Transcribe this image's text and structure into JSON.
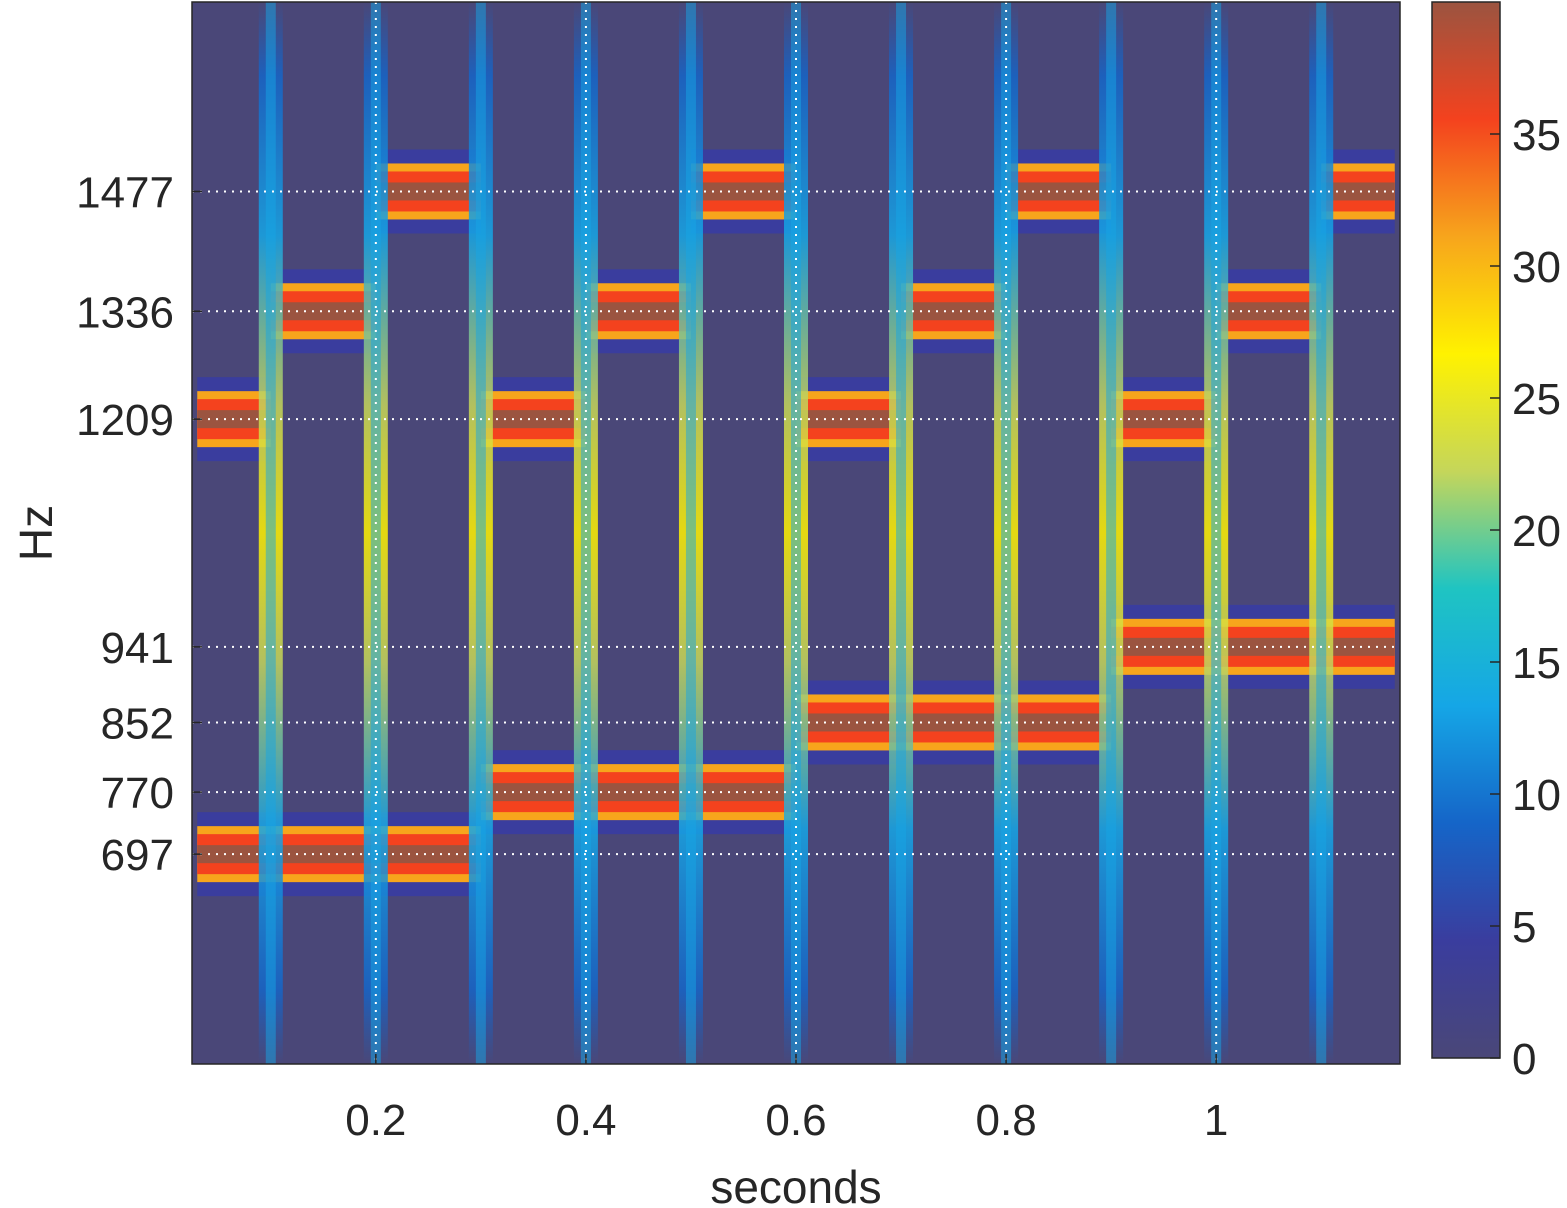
{
  "chart_data": {
    "type": "heatmap",
    "title": "",
    "xlabel": "seconds",
    "ylabel": "Hz",
    "xlim": [
      0.025,
      1.175
    ],
    "ylim": [
      450,
      1700
    ],
    "x_ticks": [
      0.2,
      0.4,
      0.6,
      0.8,
      1
    ],
    "x_tick_labels": [
      "0.2",
      "0.4",
      "0.6",
      "0.8",
      "1"
    ],
    "y_ticks": [
      697,
      770,
      852,
      941,
      1209,
      1336,
      1477
    ],
    "y_tick_labels": [
      "697",
      "770",
      "852",
      "941",
      "1209",
      "1336",
      "1477"
    ],
    "grid": true,
    "colorbar": {
      "range": [
        0,
        40
      ],
      "ticks": [
        0,
        5,
        10,
        15,
        20,
        25,
        30,
        35
      ],
      "tick_labels": [
        "0",
        "5",
        "10",
        "15",
        "20",
        "25",
        "30",
        "35"
      ],
      "colormap": "parula-like",
      "colors": [
        "#4a4778",
        "#3a3d9e",
        "#1565c8",
        "#15a6e6",
        "#1fc4c2",
        "#c5d65a",
        "#fff200",
        "#f7a51c",
        "#f4421e",
        "#9b5440"
      ]
    },
    "bursts": [
      {
        "x_start": 0.03,
        "x_end": 0.1,
        "low_hz": 697,
        "high_hz": 1209
      },
      {
        "x_start": 0.1,
        "x_end": 0.2,
        "low_hz": 697,
        "high_hz": 1336
      },
      {
        "x_start": 0.2,
        "x_end": 0.3,
        "low_hz": 697,
        "high_hz": 1477
      },
      {
        "x_start": 0.3,
        "x_end": 0.4,
        "low_hz": 770,
        "high_hz": 1209
      },
      {
        "x_start": 0.4,
        "x_end": 0.5,
        "low_hz": 770,
        "high_hz": 1336
      },
      {
        "x_start": 0.5,
        "x_end": 0.6,
        "low_hz": 770,
        "high_hz": 1477
      },
      {
        "x_start": 0.6,
        "x_end": 0.7,
        "low_hz": 852,
        "high_hz": 1209
      },
      {
        "x_start": 0.7,
        "x_end": 0.8,
        "low_hz": 852,
        "high_hz": 1336
      },
      {
        "x_start": 0.8,
        "x_end": 0.9,
        "low_hz": 852,
        "high_hz": 1477
      },
      {
        "x_start": 0.9,
        "x_end": 1.0,
        "low_hz": 941,
        "high_hz": 1209
      },
      {
        "x_start": 1.0,
        "x_end": 1.1,
        "low_hz": 941,
        "high_hz": 1336
      },
      {
        "x_start": 1.1,
        "x_end": 1.17,
        "low_hz": 941,
        "high_hz": 1477
      }
    ],
    "transition_times": [
      0.1,
      0.2,
      0.3,
      0.4,
      0.5,
      0.6,
      0.7,
      0.8,
      0.9,
      1.0,
      1.1
    ]
  }
}
